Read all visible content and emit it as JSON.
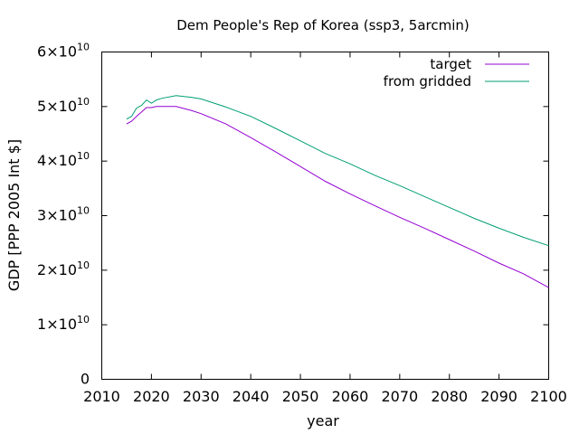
{
  "chart_data": {
    "type": "line",
    "title": "Dem People's Rep of Korea (ssp3, 5arcmin)",
    "xlabel": "year",
    "ylabel": "GDP [PPP 2005 Int $]",
    "xlim": [
      2010,
      2100
    ],
    "ylim": [
      0,
      60000000000
    ],
    "xticks": [
      2010,
      2020,
      2030,
      2040,
      2050,
      2060,
      2070,
      2080,
      2090,
      2100
    ],
    "xtick_labels": [
      "2010",
      "2020",
      "2030",
      "2040",
      "2050",
      "2060",
      "2070",
      "2080",
      "2090",
      "2100"
    ],
    "yticks": [
      {
        "value": 0,
        "mantissa": "0",
        "exponent": ""
      },
      {
        "value": 10000000000,
        "mantissa": "1×10",
        "exponent": "10"
      },
      {
        "value": 20000000000,
        "mantissa": "2×10",
        "exponent": "10"
      },
      {
        "value": 30000000000,
        "mantissa": "3×10",
        "exponent": "10"
      },
      {
        "value": 40000000000,
        "mantissa": "4×10",
        "exponent": "10"
      },
      {
        "value": 50000000000,
        "mantissa": "5×10",
        "exponent": "10"
      },
      {
        "value": 60000000000,
        "mantissa": "6×10",
        "exponent": "10"
      }
    ],
    "legend_position": "top-right",
    "grid": false,
    "series": [
      {
        "name": "target",
        "color": "#9400d3",
        "points": [
          [
            2015,
            46800000000
          ],
          [
            2016,
            47300000000
          ],
          [
            2017,
            48200000000
          ],
          [
            2018,
            49000000000
          ],
          [
            2019,
            49800000000
          ],
          [
            2020,
            49800000000
          ],
          [
            2021,
            50000000000
          ],
          [
            2022,
            50000000000
          ],
          [
            2025,
            50000000000
          ],
          [
            2028,
            49300000000
          ],
          [
            2030,
            48700000000
          ],
          [
            2035,
            46800000000
          ],
          [
            2040,
            44300000000
          ],
          [
            2045,
            41700000000
          ],
          [
            2050,
            39000000000
          ],
          [
            2055,
            36300000000
          ],
          [
            2060,
            34000000000
          ],
          [
            2065,
            31800000000
          ],
          [
            2070,
            29700000000
          ],
          [
            2075,
            27700000000
          ],
          [
            2080,
            25600000000
          ],
          [
            2085,
            23500000000
          ],
          [
            2090,
            21300000000
          ],
          [
            2095,
            19300000000
          ],
          [
            2100,
            16800000000
          ]
        ]
      },
      {
        "name": "from gridded",
        "color": "#009e73",
        "points": [
          [
            2015,
            47700000000
          ],
          [
            2016,
            48200000000
          ],
          [
            2017,
            49700000000
          ],
          [
            2018,
            50200000000
          ],
          [
            2019,
            51200000000
          ],
          [
            2020,
            50600000000
          ],
          [
            2021,
            51200000000
          ],
          [
            2022,
            51500000000
          ],
          [
            2025,
            52000000000
          ],
          [
            2028,
            51700000000
          ],
          [
            2030,
            51400000000
          ],
          [
            2035,
            49900000000
          ],
          [
            2040,
            48200000000
          ],
          [
            2045,
            46000000000
          ],
          [
            2050,
            43700000000
          ],
          [
            2055,
            41400000000
          ],
          [
            2060,
            39500000000
          ],
          [
            2065,
            37400000000
          ],
          [
            2070,
            35500000000
          ],
          [
            2075,
            33500000000
          ],
          [
            2080,
            31500000000
          ],
          [
            2085,
            29500000000
          ],
          [
            2090,
            27700000000
          ],
          [
            2095,
            26000000000
          ],
          [
            2100,
            24500000000
          ]
        ]
      }
    ]
  }
}
